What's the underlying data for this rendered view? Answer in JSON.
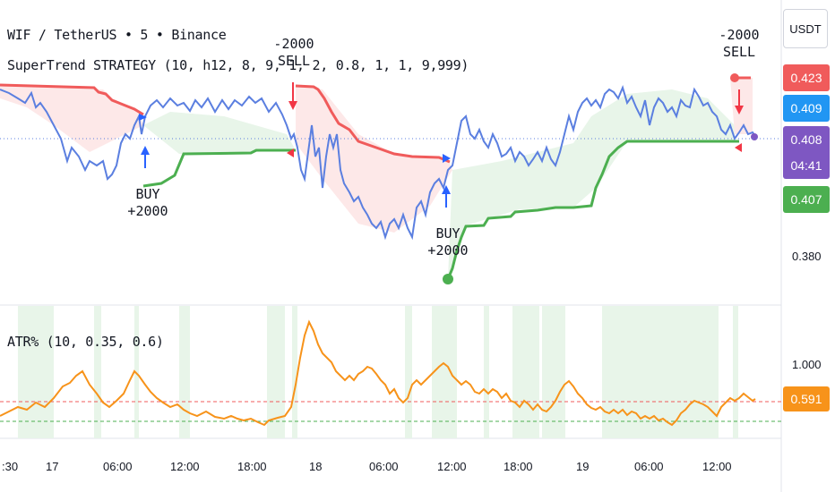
{
  "header": {
    "symbol_line": "WIF / TetherUS • 5 • Binance",
    "strategy_line": "SuperTrend STRATEGY (10, h12, 8, 9, 1, 2, 0.8, 1, 1, 9,999)",
    "atr_line": "ATR% (10, 0.35, 0.6)"
  },
  "currency_button": "USDT",
  "price_tags": [
    {
      "value": "0.423",
      "color": "#f05b5b"
    },
    {
      "value": "0.409",
      "color": "#2196f3"
    },
    {
      "value": "0.408",
      "color": "#7e57c2"
    },
    {
      "value": "04:41",
      "color": "#7e57c2"
    },
    {
      "value": "0.407",
      "color": "#4caf50"
    }
  ],
  "price_axis_labels": [
    "0.380"
  ],
  "atr_axis_labels": [
    "1.000"
  ],
  "atr_tag": {
    "value": "0.591",
    "color": "#f7931a"
  },
  "time_axis": [
    ":30",
    "17",
    "06:00",
    "12:00",
    "18:00",
    "18",
    "06:00",
    "12:00",
    "18:00",
    "19",
    "06:00",
    "12:00"
  ],
  "signals": [
    {
      "top": "BUY",
      "bottom": "+2000"
    },
    {
      "top": "-2000",
      "bottom": "SELL"
    },
    {
      "top": "BUY",
      "bottom": "+2000"
    },
    {
      "top": "-2000",
      "bottom": "SELL"
    }
  ],
  "colors": {
    "supertrend_up": "#4caf50",
    "supertrend_down": "#f05b5b",
    "price_line": "#5b7fe0",
    "atr_line": "#f7931a",
    "atr_upper": "#f05b5b",
    "atr_lower": "#4caf50"
  }
}
